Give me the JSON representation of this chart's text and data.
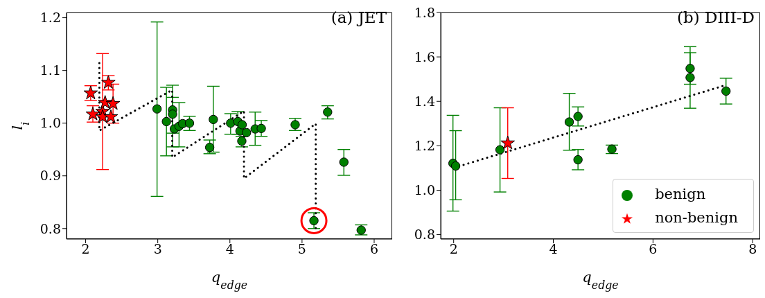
{
  "chart_data": [
    {
      "type": "scatter",
      "title": "(a) JET",
      "xlabel": "q$_{edge}$",
      "ylabel": "l$_{i}$",
      "xlim": [
        1.735,
        6.25
      ],
      "ylim": [
        0.78,
        1.21
      ],
      "xticks": [
        2,
        3,
        4,
        5,
        6
      ],
      "yticks": [
        0.8,
        0.9,
        {
          "value": 1,
          "label": "1.0"
        },
        1.1,
        1.2
      ],
      "series": [
        {
          "color": "#ff0000",
          "marker": "star",
          "x": [
            2.07,
            2.1,
            2.235,
            2.235,
            2.27,
            2.315,
            2.38,
            2.35
          ],
          "values": [
            1.057,
            1.017,
            1.022,
            1.012,
            1.039,
            1.077,
            1.037,
            1.012
          ],
          "errors": [
            [
              1.043,
              1.071
            ],
            [
              1.002,
              1.033
            ],
            [
              0.912,
              1.132
            ],
            null,
            null,
            [
              1.063,
              1.09
            ],
            [
              1.0,
              1.074
            ],
            null
          ]
        },
        {
          "color": "#008000",
          "marker": "circle",
          "x": [
            2.99,
            3.12,
            3.205,
            3.205,
            3.23,
            3.295,
            3.345,
            3.44,
            3.72,
            3.77,
            4.01,
            4.11,
            4.14,
            4.165,
            4.17,
            4.23,
            4.35,
            4.435,
            4.905,
            5.165,
            5.355,
            5.58,
            5.82
          ],
          "values": [
            1.027,
            1.003,
            1.025,
            1.017,
            0.989,
            0.994,
            0.999,
            1.0,
            0.954,
            1.007,
            1.0,
            1.003,
            0.985,
            0.966,
            0.997,
            0.982,
            0.989,
            0.99,
            0.997,
            0.815,
            1.021,
            0.926,
            0.797
          ],
          "errors": [
            [
              0.861,
              1.192
            ],
            [
              0.938,
              1.068
            ],
            [
              0.981,
              1.072
            ],
            [
              0.955,
              1.049
            ],
            null,
            [
              0.955,
              1.039
            ],
            null,
            [
              0.986,
              1.013
            ],
            [
              0.942,
              0.968
            ],
            [
              0.945,
              1.07
            ],
            [
              0.979,
              1.018
            ],
            [
              0.979,
              1.022
            ],
            null,
            [
              0.955,
              0.975
            ],
            null,
            null,
            [
              0.958,
              1.021
            ],
            [
              0.975,
              1.005
            ],
            [
              0.986,
              1.009
            ],
            [
              0.8,
              0.83
            ],
            [
              1.008,
              1.033
            ],
            [
              0.901,
              0.95
            ],
            [
              0.788,
              0.807
            ]
          ]
        },
        {
          "type": "line",
          "color": "#000000",
          "line_style": "dotted",
          "x": [
            2.19,
            2.19,
            3.2,
            3.2,
            4.195,
            4.195,
            5.19,
            5.19
          ],
          "values": [
            1.114,
            0.986,
            1.063,
            0.935,
            1.023,
            0.895,
            0.999,
            0.801
          ]
        }
      ]
    },
    {
      "type": "scatter",
      "title": "(b) DIII-D",
      "xlabel": "q$_{edge}$",
      "xlim": [
        1.74,
        8.15
      ],
      "ylim": [
        0.78,
        1.8
      ],
      "xticks": [
        2,
        4,
        6,
        8
      ],
      "yticks": [
        0.8,
        {
          "value": 1,
          "label": "1.0"
        },
        1.2,
        1.4,
        1.6,
        1.8
      ],
      "legend": "bottom right",
      "series": [
        {
          "name": "benign",
          "color": "#008000",
          "marker": "circle",
          "x": [
            1.986,
            2.04,
            2.93,
            4.32,
            4.495,
            4.495,
            5.175,
            6.745,
            6.745,
            7.465
          ],
          "values": [
            1.121,
            1.109,
            1.182,
            1.307,
            1.332,
            1.137,
            1.185,
            1.548,
            1.507,
            1.446
          ],
          "errors": [
            [
              0.906,
              1.337
            ],
            [
              0.957,
              1.268
            ],
            [
              0.992,
              1.371
            ],
            [
              1.18,
              1.436
            ],
            [
              1.289,
              1.375
            ],
            [
              1.092,
              1.183
            ],
            [
              1.165,
              1.203
            ],
            [
              1.477,
              1.646
            ],
            [
              1.369,
              1.619
            ],
            [
              1.388,
              1.504
            ]
          ]
        },
        {
          "name": "non-benign",
          "color": "#ff0000",
          "marker": "star",
          "x": [
            3.085
          ],
          "values": [
            1.212
          ],
          "errors": [
            [
              1.053,
              1.371
            ]
          ]
        },
        {
          "type": "line",
          "color": "#000000",
          "line_style": "dotted",
          "x": [
            2.01,
            7.43
          ],
          "values": [
            1.101,
            1.471
          ]
        }
      ]
    }
  ]
}
